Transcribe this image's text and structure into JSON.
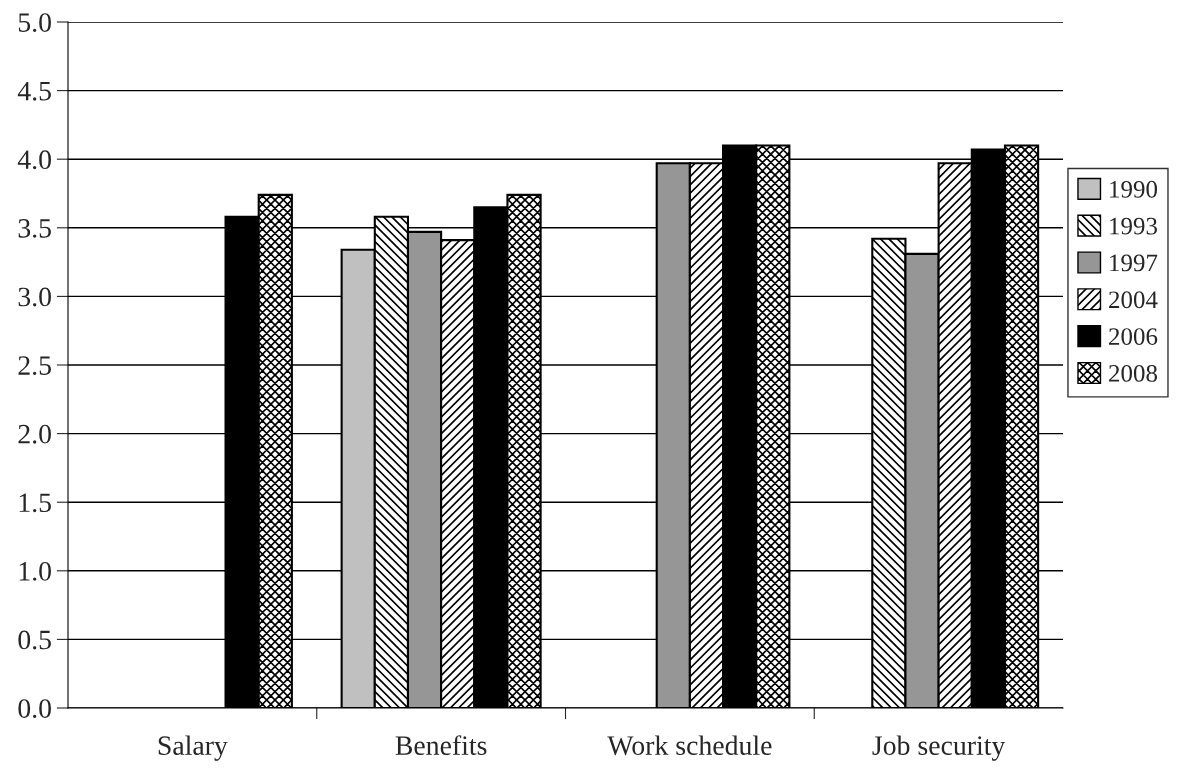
{
  "chart_data": {
    "type": "bar",
    "categories": [
      "Salary",
      "Benefits",
      "Work schedule",
      "Job security"
    ],
    "series": [
      {
        "name": "1990",
        "color": "#c0c0c0",
        "values": [
          null,
          3.34,
          null,
          null
        ]
      },
      {
        "name": "1993",
        "color": "#000000",
        "values": [
          null,
          3.58,
          null,
          3.42
        ]
      },
      {
        "name": "1997",
        "color": "#969696",
        "values": [
          null,
          3.47,
          3.97,
          3.31
        ]
      },
      {
        "name": "2004",
        "color": "#000000",
        "values": [
          null,
          3.41,
          3.97,
          3.97
        ]
      },
      {
        "name": "2006",
        "color": "#000000",
        "values": [
          3.58,
          3.65,
          4.1,
          4.07
        ]
      },
      {
        "name": "2008",
        "color": "#000000",
        "values": [
          3.74,
          3.74,
          4.1,
          4.1
        ]
      }
    ],
    "ylim": [
      0,
      5
    ],
    "yticks": [
      {
        "value": 0,
        "label": "0.0"
      },
      {
        "value": 0.5,
        "label": "0.5"
      },
      {
        "value": 1,
        "label": "1.0"
      },
      {
        "value": 1.5,
        "label": "1.5"
      },
      {
        "value": 2,
        "label": "2.0"
      },
      {
        "value": 2.5,
        "label": "2.5"
      },
      {
        "value": 3,
        "label": "3.0"
      },
      {
        "value": 3.5,
        "label": "3.5"
      },
      {
        "value": 4,
        "label": "4.0"
      },
      {
        "value": 4.5,
        "label": "4.5"
      },
      {
        "value": 5,
        "label": "5.0"
      }
    ],
    "grid": "y",
    "legend": "right"
  }
}
